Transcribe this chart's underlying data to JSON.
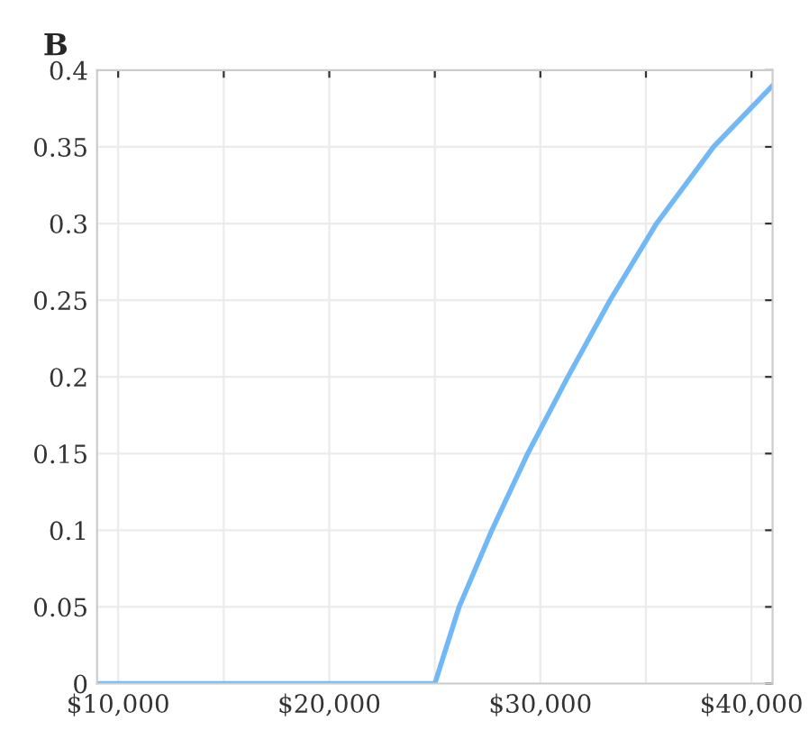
{
  "chart_data": {
    "type": "line",
    "title": "B",
    "x": [
      9000,
      25000,
      26150,
      27700,
      29400,
      31300,
      33300,
      35500,
      38200,
      41000
    ],
    "series": [
      {
        "color": "#70b8f6",
        "values": [
          0,
          0,
          0.05,
          0.1,
          0.15,
          0.2,
          0.25,
          0.3,
          0.35,
          0.39
        ]
      }
    ],
    "xlim": [
      9000,
      41000
    ],
    "xticks": [
      {
        "value": 10000,
        "label": "$10,000"
      },
      {
        "value": 15000,
        "label": null
      },
      {
        "value": 20000,
        "label": "$20,000"
      },
      {
        "value": 25000,
        "label": null
      },
      {
        "value": 30000,
        "label": "$30,000"
      },
      {
        "value": 35000,
        "label": null
      },
      {
        "value": 40000,
        "label": "$40,000"
      }
    ],
    "ylim": [
      0,
      0.4
    ],
    "yticks": [
      0,
      0.05,
      0.1,
      0.15,
      0.2,
      0.25,
      0.3,
      0.35,
      0.4
    ],
    "grid": true,
    "marker": "none",
    "line_style": "solid"
  }
}
